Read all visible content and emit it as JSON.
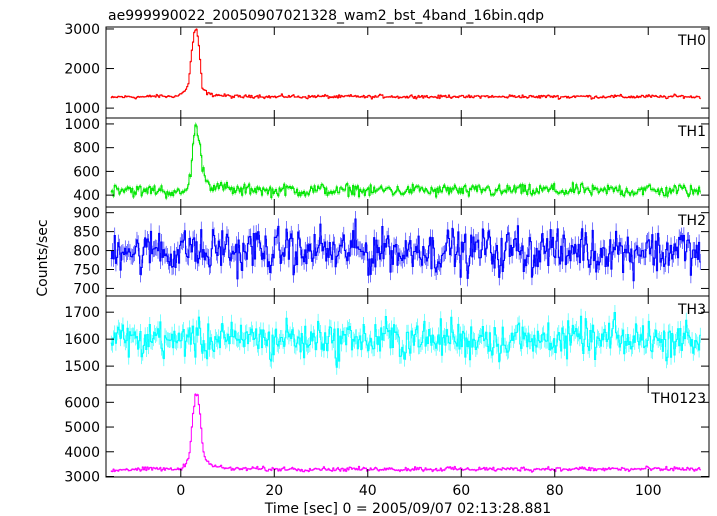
{
  "chart_data": {
    "type": "line",
    "title": "ae999990022_20050907021328_wam2_bst_4band_16bin.qdp",
    "xlabel": "Time [sec] 0 = 2005/09/07 02:13:28.881",
    "ylabel": "Counts/sec",
    "xlim": [
      -16,
      113
    ],
    "xticks": [
      0,
      20,
      40,
      60,
      80,
      100
    ],
    "grid": false,
    "panels": [
      {
        "name": "TH0",
        "color": "#ff0000",
        "ylim": [
          750,
          3050
        ],
        "yticks": [
          1000,
          2000,
          3000
        ],
        "baseline": 1290,
        "noise": 35,
        "x": [
          -15,
          -8,
          -3,
          -1,
          0.5,
          1.5,
          2.3,
          2.8,
          3.3,
          3.8,
          4.5,
          5.5,
          7,
          10,
          20,
          40,
          60,
          80,
          100,
          110
        ],
        "y": [
          1270,
          1290,
          1300,
          1310,
          1400,
          1600,
          2500,
          2950,
          3000,
          2500,
          1500,
          1380,
          1330,
          1300,
          1290,
          1290,
          1290,
          1290,
          1290,
          1290
        ]
      },
      {
        "name": "TH1",
        "color": "#00e600",
        "ylim": [
          300,
          1050
        ],
        "yticks": [
          400,
          600,
          800,
          1000
        ],
        "baseline": 440,
        "noise": 40,
        "x": [
          -15,
          -8,
          -2,
          0,
          1.2,
          2,
          2.7,
          3.2,
          3.8,
          4.5,
          5.5,
          7,
          10,
          20,
          40,
          60,
          80,
          100,
          110
        ],
        "y": [
          450,
          440,
          430,
          420,
          430,
          600,
          900,
          1000,
          850,
          650,
          520,
          470,
          450,
          440,
          440,
          440,
          440,
          440,
          440
        ]
      },
      {
        "name": "TH2",
        "color": "#0000ff",
        "ylim": [
          680,
          915
        ],
        "yticks": [
          700,
          750,
          800,
          850,
          900
        ],
        "baseline": 800,
        "noise": 45,
        "x": [
          -15,
          0,
          20,
          40,
          60,
          80,
          100,
          110
        ],
        "y": [
          800,
          800,
          800,
          800,
          800,
          800,
          800,
          800
        ]
      },
      {
        "name": "TH3",
        "color": "#00ffff",
        "ylim": [
          1430,
          1760
        ],
        "yticks": [
          1500,
          1600,
          1700
        ],
        "baseline": 1600,
        "noise": 55,
        "x": [
          -15,
          0,
          20,
          40,
          60,
          80,
          100,
          110
        ],
        "y": [
          1600,
          1600,
          1600,
          1600,
          1600,
          1600,
          1600,
          1600
        ]
      },
      {
        "name": "TH0123",
        "color": "#ff00ff",
        "ylim": [
          2980,
          6700
        ],
        "yticks": [
          3000,
          4000,
          5000,
          6000
        ],
        "baseline": 3300,
        "noise": 70,
        "x": [
          -15,
          -8,
          -2,
          0,
          1,
          1.8,
          2.5,
          3,
          3.5,
          4,
          4.7,
          5.5,
          7,
          10,
          20,
          40,
          60,
          80,
          100,
          110
        ],
        "y": [
          3250,
          3300,
          3300,
          3320,
          3500,
          4000,
          5500,
          6300,
          6400,
          5500,
          4000,
          3600,
          3400,
          3320,
          3300,
          3300,
          3300,
          3300,
          3300,
          3300
        ]
      }
    ]
  }
}
